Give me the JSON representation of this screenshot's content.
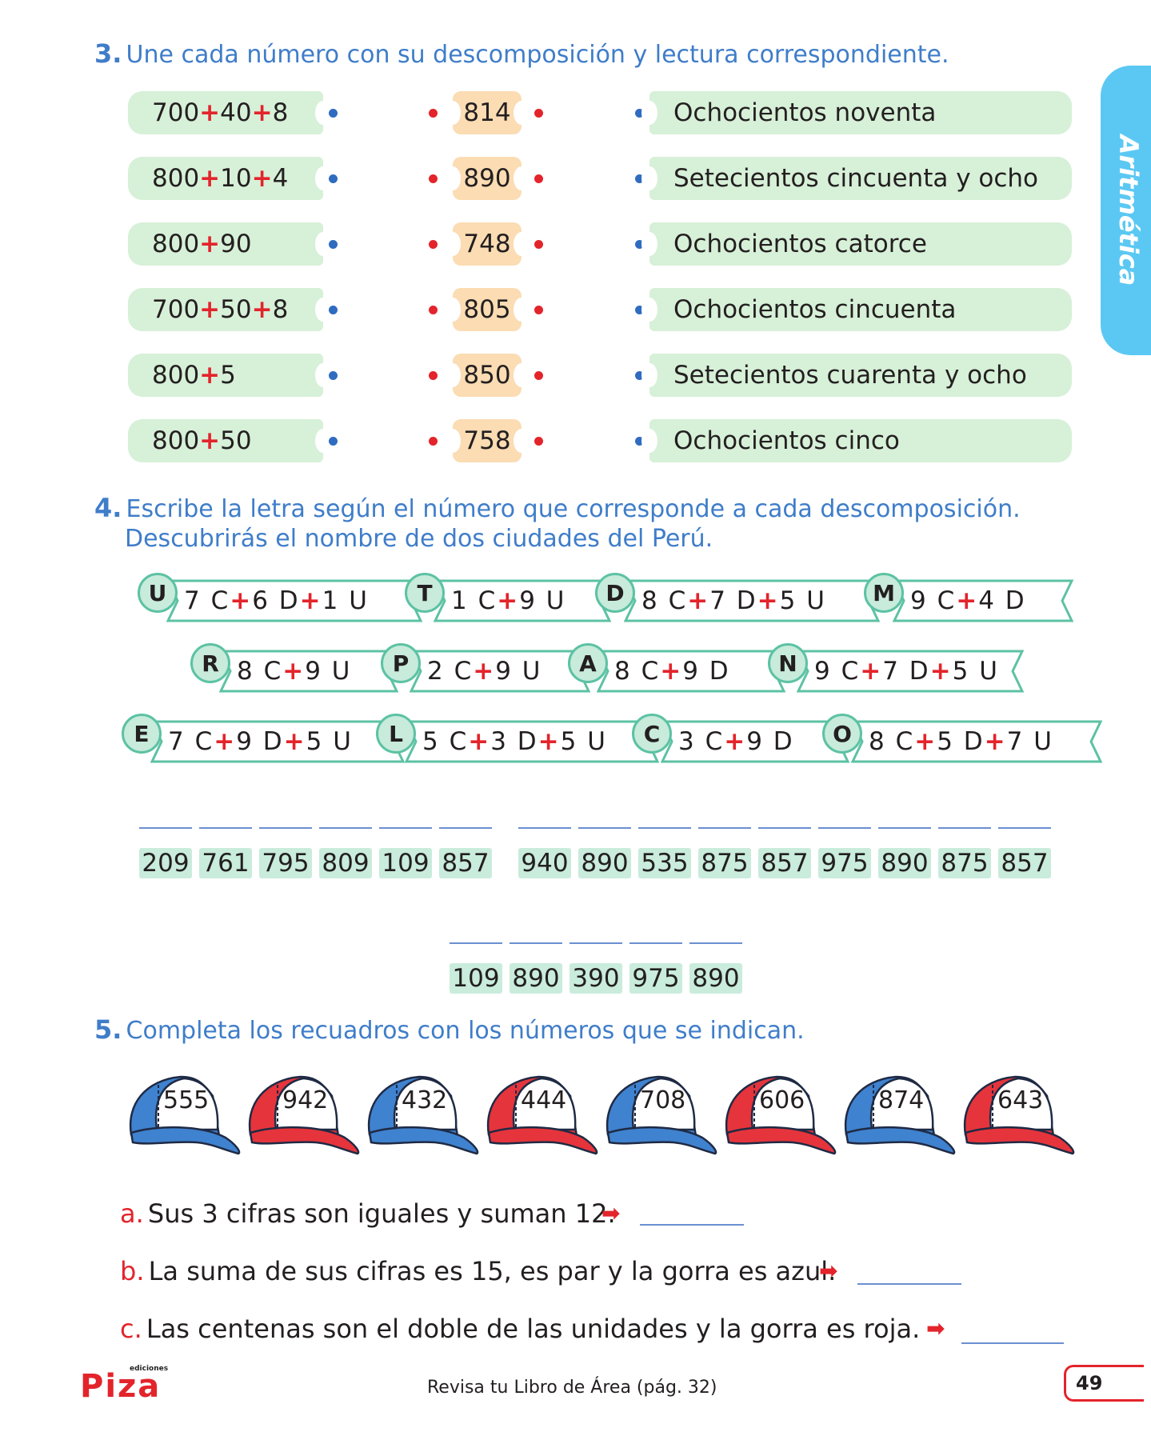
{
  "side_tab": {
    "label": "Aritmética",
    "color": "#5bc8f3"
  },
  "ex3": {
    "number": "3.",
    "instruction": "Une cada número con su descomposición y lectura correspondiente.",
    "left": [
      [
        "700",
        "40",
        "8"
      ],
      [
        "800",
        "10",
        "4"
      ],
      [
        "800",
        "90"
      ],
      [
        "700",
        "50",
        "8"
      ],
      [
        "800",
        "5"
      ],
      [
        "800",
        "50"
      ]
    ],
    "middle": [
      "814",
      "890",
      "748",
      "805",
      "850",
      "758"
    ],
    "right": [
      "Ochocientos noventa",
      "Setecientos cincuenta y ocho",
      "Ochocientos catorce",
      "Ochocientos cincuenta",
      "Setecientos cuarenta y ocho",
      "Ochocientos cinco"
    ]
  },
  "ex4": {
    "number": "4.",
    "instruction_line1": "Escribe la letra según el número que corresponde a cada descomposición.",
    "instruction_line2": "Descubrirás el nombre de dos ciudades del Perú.",
    "ribbons": [
      {
        "letter": "U",
        "terms": [
          "7 C",
          "6 D",
          "1 U"
        ]
      },
      {
        "letter": "T",
        "terms": [
          "1 C",
          "9 U"
        ]
      },
      {
        "letter": "D",
        "terms": [
          "8 C",
          "7 D",
          "5 U"
        ]
      },
      {
        "letter": "M",
        "terms": [
          "9 C",
          "4 D"
        ]
      },
      {
        "letter": "R",
        "terms": [
          "8 C",
          "9 U"
        ]
      },
      {
        "letter": "P",
        "terms": [
          "2 C",
          "9 U"
        ]
      },
      {
        "letter": "A",
        "terms": [
          "8 C",
          "9 D"
        ]
      },
      {
        "letter": "N",
        "terms": [
          "9 C",
          "7 D",
          "5 U"
        ]
      },
      {
        "letter": "E",
        "terms": [
          "7 C",
          "9 D",
          "5 U"
        ]
      },
      {
        "letter": "L",
        "terms": [
          "5 C",
          "3 D",
          "5 U"
        ]
      },
      {
        "letter": "C",
        "terms": [
          "3 C",
          "9 D"
        ]
      },
      {
        "letter": "O",
        "terms": [
          "8 C",
          "5 D",
          "7 U"
        ]
      }
    ],
    "code_row1_word1": [
      "209",
      "761",
      "795",
      "809",
      "109",
      "857"
    ],
    "code_row1_word2": [
      "940",
      "890",
      "535",
      "875",
      "857",
      "975",
      "890",
      "875",
      "857"
    ],
    "code_row2": [
      "109",
      "890",
      "390",
      "975",
      "890"
    ]
  },
  "ex5": {
    "number": "5.",
    "instruction": "Completa los recuadros con los números que se indican.",
    "caps": [
      {
        "value": "555",
        "color": "blue"
      },
      {
        "value": "942",
        "color": "red"
      },
      {
        "value": "432",
        "color": "blue"
      },
      {
        "value": "444",
        "color": "red"
      },
      {
        "value": "708",
        "color": "blue"
      },
      {
        "value": "606",
        "color": "red"
      },
      {
        "value": "874",
        "color": "blue"
      },
      {
        "value": "643",
        "color": "red"
      }
    ],
    "questions": [
      {
        "letter": "a.",
        "text": "Sus 3 cifras son iguales y suman 12."
      },
      {
        "letter": "b.",
        "text": "La suma de sus cifras es 15, es par y la gorra es azul."
      },
      {
        "letter": "c.",
        "text": "Las centenas son el doble de las unidades y la gorra es roja."
      }
    ]
  },
  "footer": {
    "logo_small": "ediciones",
    "logo": "Piza",
    "reference": "Revisa tu Libro de Área (pág. 32)",
    "page_number": "49"
  },
  "colors": {
    "blue": "#3f7dc9",
    "red": "#e3242b",
    "green_bg": "#d7f0d8",
    "orange_bg": "#fbdcb3"
  }
}
